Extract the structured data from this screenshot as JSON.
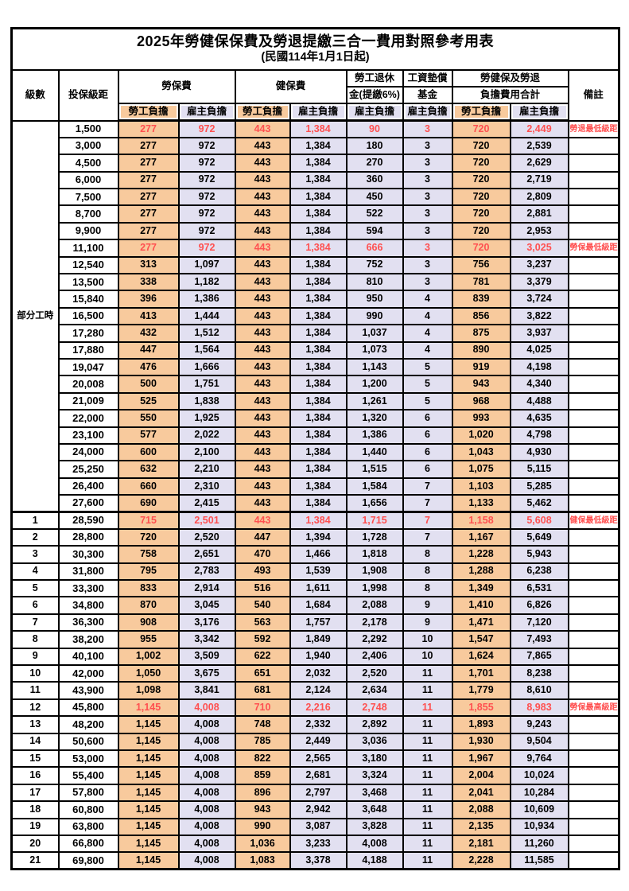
{
  "title": "2025年勞健保保費及勞退提繳三合一費用對照參考用表",
  "subtitle": "(民國114年1月1日起)",
  "header": {
    "level": "級數",
    "bracket": "投保級距",
    "labor_fee": "勞保費",
    "health_fee": "健保費",
    "pension_line1": "勞工退休",
    "pension_line2": "金(提繳6%)",
    "wage_fund_line1": "工資墊償",
    "wage_fund_line2": "基金",
    "total_line1": "勞健保及勞退",
    "total_line2": "負擔費用合計",
    "remark": "備註",
    "employee_share": "勞工負擔",
    "employer_share": "雇主負擔"
  },
  "part_time_label": "部分工時",
  "colors": {
    "employee_bg": "#F8CA9D",
    "employer_bg": "#E2E0F1",
    "highlight_text": "#FF5050"
  },
  "rows": [
    {
      "level": "",
      "bracket": "1,500",
      "labor_emp": "277",
      "labor_er": "972",
      "health_emp": "443",
      "health_er": "1,384",
      "pension_er": "90",
      "fund_er": "3",
      "total_emp": "720",
      "total_er": "2,449",
      "remark": "勞退最低級距",
      "highlight": true
    },
    {
      "level": "",
      "bracket": "3,000",
      "labor_emp": "277",
      "labor_er": "972",
      "health_emp": "443",
      "health_er": "1,384",
      "pension_er": "180",
      "fund_er": "3",
      "total_emp": "720",
      "total_er": "2,539",
      "remark": "",
      "highlight": false
    },
    {
      "level": "",
      "bracket": "4,500",
      "labor_emp": "277",
      "labor_er": "972",
      "health_emp": "443",
      "health_er": "1,384",
      "pension_er": "270",
      "fund_er": "3",
      "total_emp": "720",
      "total_er": "2,629",
      "remark": "",
      "highlight": false
    },
    {
      "level": "",
      "bracket": "6,000",
      "labor_emp": "277",
      "labor_er": "972",
      "health_emp": "443",
      "health_er": "1,384",
      "pension_er": "360",
      "fund_er": "3",
      "total_emp": "720",
      "total_er": "2,719",
      "remark": "",
      "highlight": false
    },
    {
      "level": "",
      "bracket": "7,500",
      "labor_emp": "277",
      "labor_er": "972",
      "health_emp": "443",
      "health_er": "1,384",
      "pension_er": "450",
      "fund_er": "3",
      "total_emp": "720",
      "total_er": "2,809",
      "remark": "",
      "highlight": false
    },
    {
      "level": "",
      "bracket": "8,700",
      "labor_emp": "277",
      "labor_er": "972",
      "health_emp": "443",
      "health_er": "1,384",
      "pension_er": "522",
      "fund_er": "3",
      "total_emp": "720",
      "total_er": "2,881",
      "remark": "",
      "highlight": false
    },
    {
      "level": "",
      "bracket": "9,900",
      "labor_emp": "277",
      "labor_er": "972",
      "health_emp": "443",
      "health_er": "1,384",
      "pension_er": "594",
      "fund_er": "3",
      "total_emp": "720",
      "total_er": "2,953",
      "remark": "",
      "highlight": false
    },
    {
      "level": "",
      "bracket": "11,100",
      "labor_emp": "277",
      "labor_er": "972",
      "health_emp": "443",
      "health_er": "1,384",
      "pension_er": "666",
      "fund_er": "3",
      "total_emp": "720",
      "total_er": "3,025",
      "remark": "勞保最低級距",
      "highlight": true
    },
    {
      "level": "",
      "bracket": "12,540",
      "labor_emp": "313",
      "labor_er": "1,097",
      "health_emp": "443",
      "health_er": "1,384",
      "pension_er": "752",
      "fund_er": "3",
      "total_emp": "756",
      "total_er": "3,237",
      "remark": "",
      "highlight": false
    },
    {
      "level": "",
      "bracket": "13,500",
      "labor_emp": "338",
      "labor_er": "1,182",
      "health_emp": "443",
      "health_er": "1,384",
      "pension_er": "810",
      "fund_er": "3",
      "total_emp": "781",
      "total_er": "3,379",
      "remark": "",
      "highlight": false
    },
    {
      "level": "",
      "bracket": "15,840",
      "labor_emp": "396",
      "labor_er": "1,386",
      "health_emp": "443",
      "health_er": "1,384",
      "pension_er": "950",
      "fund_er": "4",
      "total_emp": "839",
      "total_er": "3,724",
      "remark": "",
      "highlight": false
    },
    {
      "level": "",
      "bracket": "16,500",
      "labor_emp": "413",
      "labor_er": "1,444",
      "health_emp": "443",
      "health_er": "1,384",
      "pension_er": "990",
      "fund_er": "4",
      "total_emp": "856",
      "total_er": "3,822",
      "remark": "",
      "highlight": false
    },
    {
      "level": "",
      "bracket": "17,280",
      "labor_emp": "432",
      "labor_er": "1,512",
      "health_emp": "443",
      "health_er": "1,384",
      "pension_er": "1,037",
      "fund_er": "4",
      "total_emp": "875",
      "total_er": "3,937",
      "remark": "",
      "highlight": false
    },
    {
      "level": "",
      "bracket": "17,880",
      "labor_emp": "447",
      "labor_er": "1,564",
      "health_emp": "443",
      "health_er": "1,384",
      "pension_er": "1,073",
      "fund_er": "4",
      "total_emp": "890",
      "total_er": "4,025",
      "remark": "",
      "highlight": false
    },
    {
      "level": "",
      "bracket": "19,047",
      "labor_emp": "476",
      "labor_er": "1,666",
      "health_emp": "443",
      "health_er": "1,384",
      "pension_er": "1,143",
      "fund_er": "5",
      "total_emp": "919",
      "total_er": "4,198",
      "remark": "",
      "highlight": false
    },
    {
      "level": "",
      "bracket": "20,008",
      "labor_emp": "500",
      "labor_er": "1,751",
      "health_emp": "443",
      "health_er": "1,384",
      "pension_er": "1,200",
      "fund_er": "5",
      "total_emp": "943",
      "total_er": "4,340",
      "remark": "",
      "highlight": false
    },
    {
      "level": "",
      "bracket": "21,009",
      "labor_emp": "525",
      "labor_er": "1,838",
      "health_emp": "443",
      "health_er": "1,384",
      "pension_er": "1,261",
      "fund_er": "5",
      "total_emp": "968",
      "total_er": "4,488",
      "remark": "",
      "highlight": false
    },
    {
      "level": "",
      "bracket": "22,000",
      "labor_emp": "550",
      "labor_er": "1,925",
      "health_emp": "443",
      "health_er": "1,384",
      "pension_er": "1,320",
      "fund_er": "6",
      "total_emp": "993",
      "total_er": "4,635",
      "remark": "",
      "highlight": false
    },
    {
      "level": "",
      "bracket": "23,100",
      "labor_emp": "577",
      "labor_er": "2,022",
      "health_emp": "443",
      "health_er": "1,384",
      "pension_er": "1,386",
      "fund_er": "6",
      "total_emp": "1,020",
      "total_er": "4,798",
      "remark": "",
      "highlight": false
    },
    {
      "level": "",
      "bracket": "24,000",
      "labor_emp": "600",
      "labor_er": "2,100",
      "health_emp": "443",
      "health_er": "1,384",
      "pension_er": "1,440",
      "fund_er": "6",
      "total_emp": "1,043",
      "total_er": "4,930",
      "remark": "",
      "highlight": false
    },
    {
      "level": "",
      "bracket": "25,250",
      "labor_emp": "632",
      "labor_er": "2,210",
      "health_emp": "443",
      "health_er": "1,384",
      "pension_er": "1,515",
      "fund_er": "6",
      "total_emp": "1,075",
      "total_er": "5,115",
      "remark": "",
      "highlight": false
    },
    {
      "level": "",
      "bracket": "26,400",
      "labor_emp": "660",
      "labor_er": "2,310",
      "health_emp": "443",
      "health_er": "1,384",
      "pension_er": "1,584",
      "fund_er": "7",
      "total_emp": "1,103",
      "total_er": "5,285",
      "remark": "",
      "highlight": false
    },
    {
      "level": "",
      "bracket": "27,600",
      "labor_emp": "690",
      "labor_er": "2,415",
      "health_emp": "443",
      "health_er": "1,384",
      "pension_er": "1,656",
      "fund_er": "7",
      "total_emp": "1,133",
      "total_er": "5,462",
      "remark": "",
      "highlight": false
    },
    {
      "level": "1",
      "bracket": "28,590",
      "labor_emp": "715",
      "labor_er": "2,501",
      "health_emp": "443",
      "health_er": "1,384",
      "pension_er": "1,715",
      "fund_er": "7",
      "total_emp": "1,158",
      "total_er": "5,608",
      "remark": "健保最低級距",
      "highlight": true
    },
    {
      "level": "2",
      "bracket": "28,800",
      "labor_emp": "720",
      "labor_er": "2,520",
      "health_emp": "447",
      "health_er": "1,394",
      "pension_er": "1,728",
      "fund_er": "7",
      "total_emp": "1,167",
      "total_er": "5,649",
      "remark": "",
      "highlight": false
    },
    {
      "level": "3",
      "bracket": "30,300",
      "labor_emp": "758",
      "labor_er": "2,651",
      "health_emp": "470",
      "health_er": "1,466",
      "pension_er": "1,818",
      "fund_er": "8",
      "total_emp": "1,228",
      "total_er": "5,943",
      "remark": "",
      "highlight": false
    },
    {
      "level": "4",
      "bracket": "31,800",
      "labor_emp": "795",
      "labor_er": "2,783",
      "health_emp": "493",
      "health_er": "1,539",
      "pension_er": "1,908",
      "fund_er": "8",
      "total_emp": "1,288",
      "total_er": "6,238",
      "remark": "",
      "highlight": false
    },
    {
      "level": "5",
      "bracket": "33,300",
      "labor_emp": "833",
      "labor_er": "2,914",
      "health_emp": "516",
      "health_er": "1,611",
      "pension_er": "1,998",
      "fund_er": "8",
      "total_emp": "1,349",
      "total_er": "6,531",
      "remark": "",
      "highlight": false
    },
    {
      "level": "6",
      "bracket": "34,800",
      "labor_emp": "870",
      "labor_er": "3,045",
      "health_emp": "540",
      "health_er": "1,684",
      "pension_er": "2,088",
      "fund_er": "9",
      "total_emp": "1,410",
      "total_er": "6,826",
      "remark": "",
      "highlight": false
    },
    {
      "level": "7",
      "bracket": "36,300",
      "labor_emp": "908",
      "labor_er": "3,176",
      "health_emp": "563",
      "health_er": "1,757",
      "pension_er": "2,178",
      "fund_er": "9",
      "total_emp": "1,471",
      "total_er": "7,120",
      "remark": "",
      "highlight": false
    },
    {
      "level": "8",
      "bracket": "38,200",
      "labor_emp": "955",
      "labor_er": "3,342",
      "health_emp": "592",
      "health_er": "1,849",
      "pension_er": "2,292",
      "fund_er": "10",
      "total_emp": "1,547",
      "total_er": "7,493",
      "remark": "",
      "highlight": false
    },
    {
      "level": "9",
      "bracket": "40,100",
      "labor_emp": "1,002",
      "labor_er": "3,509",
      "health_emp": "622",
      "health_er": "1,940",
      "pension_er": "2,406",
      "fund_er": "10",
      "total_emp": "1,624",
      "total_er": "7,865",
      "remark": "",
      "highlight": false
    },
    {
      "level": "10",
      "bracket": "42,000",
      "labor_emp": "1,050",
      "labor_er": "3,675",
      "health_emp": "651",
      "health_er": "2,032",
      "pension_er": "2,520",
      "fund_er": "11",
      "total_emp": "1,701",
      "total_er": "8,238",
      "remark": "",
      "highlight": false
    },
    {
      "level": "11",
      "bracket": "43,900",
      "labor_emp": "1,098",
      "labor_er": "3,841",
      "health_emp": "681",
      "health_er": "2,124",
      "pension_er": "2,634",
      "fund_er": "11",
      "total_emp": "1,779",
      "total_er": "8,610",
      "remark": "",
      "highlight": false
    },
    {
      "level": "12",
      "bracket": "45,800",
      "labor_emp": "1,145",
      "labor_er": "4,008",
      "health_emp": "710",
      "health_er": "2,216",
      "pension_er": "2,748",
      "fund_er": "11",
      "total_emp": "1,855",
      "total_er": "8,983",
      "remark": "勞保最高級距",
      "highlight": true
    },
    {
      "level": "13",
      "bracket": "48,200",
      "labor_emp": "1,145",
      "labor_er": "4,008",
      "health_emp": "748",
      "health_er": "2,332",
      "pension_er": "2,892",
      "fund_er": "11",
      "total_emp": "1,893",
      "total_er": "9,243",
      "remark": "",
      "highlight": false
    },
    {
      "level": "14",
      "bracket": "50,600",
      "labor_emp": "1,145",
      "labor_er": "4,008",
      "health_emp": "785",
      "health_er": "2,449",
      "pension_er": "3,036",
      "fund_er": "11",
      "total_emp": "1,930",
      "total_er": "9,504",
      "remark": "",
      "highlight": false
    },
    {
      "level": "15",
      "bracket": "53,000",
      "labor_emp": "1,145",
      "labor_er": "4,008",
      "health_emp": "822",
      "health_er": "2,565",
      "pension_er": "3,180",
      "fund_er": "11",
      "total_emp": "1,967",
      "total_er": "9,764",
      "remark": "",
      "highlight": false
    },
    {
      "level": "16",
      "bracket": "55,400",
      "labor_emp": "1,145",
      "labor_er": "4,008",
      "health_emp": "859",
      "health_er": "2,681",
      "pension_er": "3,324",
      "fund_er": "11",
      "total_emp": "2,004",
      "total_er": "10,024",
      "remark": "",
      "highlight": false
    },
    {
      "level": "17",
      "bracket": "57,800",
      "labor_emp": "1,145",
      "labor_er": "4,008",
      "health_emp": "896",
      "health_er": "2,797",
      "pension_er": "3,468",
      "fund_er": "11",
      "total_emp": "2,041",
      "total_er": "10,284",
      "remark": "",
      "highlight": false
    },
    {
      "level": "18",
      "bracket": "60,800",
      "labor_emp": "1,145",
      "labor_er": "4,008",
      "health_emp": "943",
      "health_er": "2,942",
      "pension_er": "3,648",
      "fund_er": "11",
      "total_emp": "2,088",
      "total_er": "10,609",
      "remark": "",
      "highlight": false
    },
    {
      "level": "19",
      "bracket": "63,800",
      "labor_emp": "1,145",
      "labor_er": "4,008",
      "health_emp": "990",
      "health_er": "3,087",
      "pension_er": "3,828",
      "fund_er": "11",
      "total_emp": "2,135",
      "total_er": "10,934",
      "remark": "",
      "highlight": false
    },
    {
      "level": "20",
      "bracket": "66,800",
      "labor_emp": "1,145",
      "labor_er": "4,008",
      "health_emp": "1,036",
      "health_er": "3,233",
      "pension_er": "4,008",
      "fund_er": "11",
      "total_emp": "2,181",
      "total_er": "11,260",
      "remark": "",
      "highlight": false
    },
    {
      "level": "21",
      "bracket": "69,800",
      "labor_emp": "1,145",
      "labor_er": "4,008",
      "health_emp": "1,083",
      "health_er": "3,378",
      "pension_er": "4,188",
      "fund_er": "11",
      "total_emp": "2,228",
      "total_er": "11,585",
      "remark": "",
      "highlight": false
    }
  ]
}
